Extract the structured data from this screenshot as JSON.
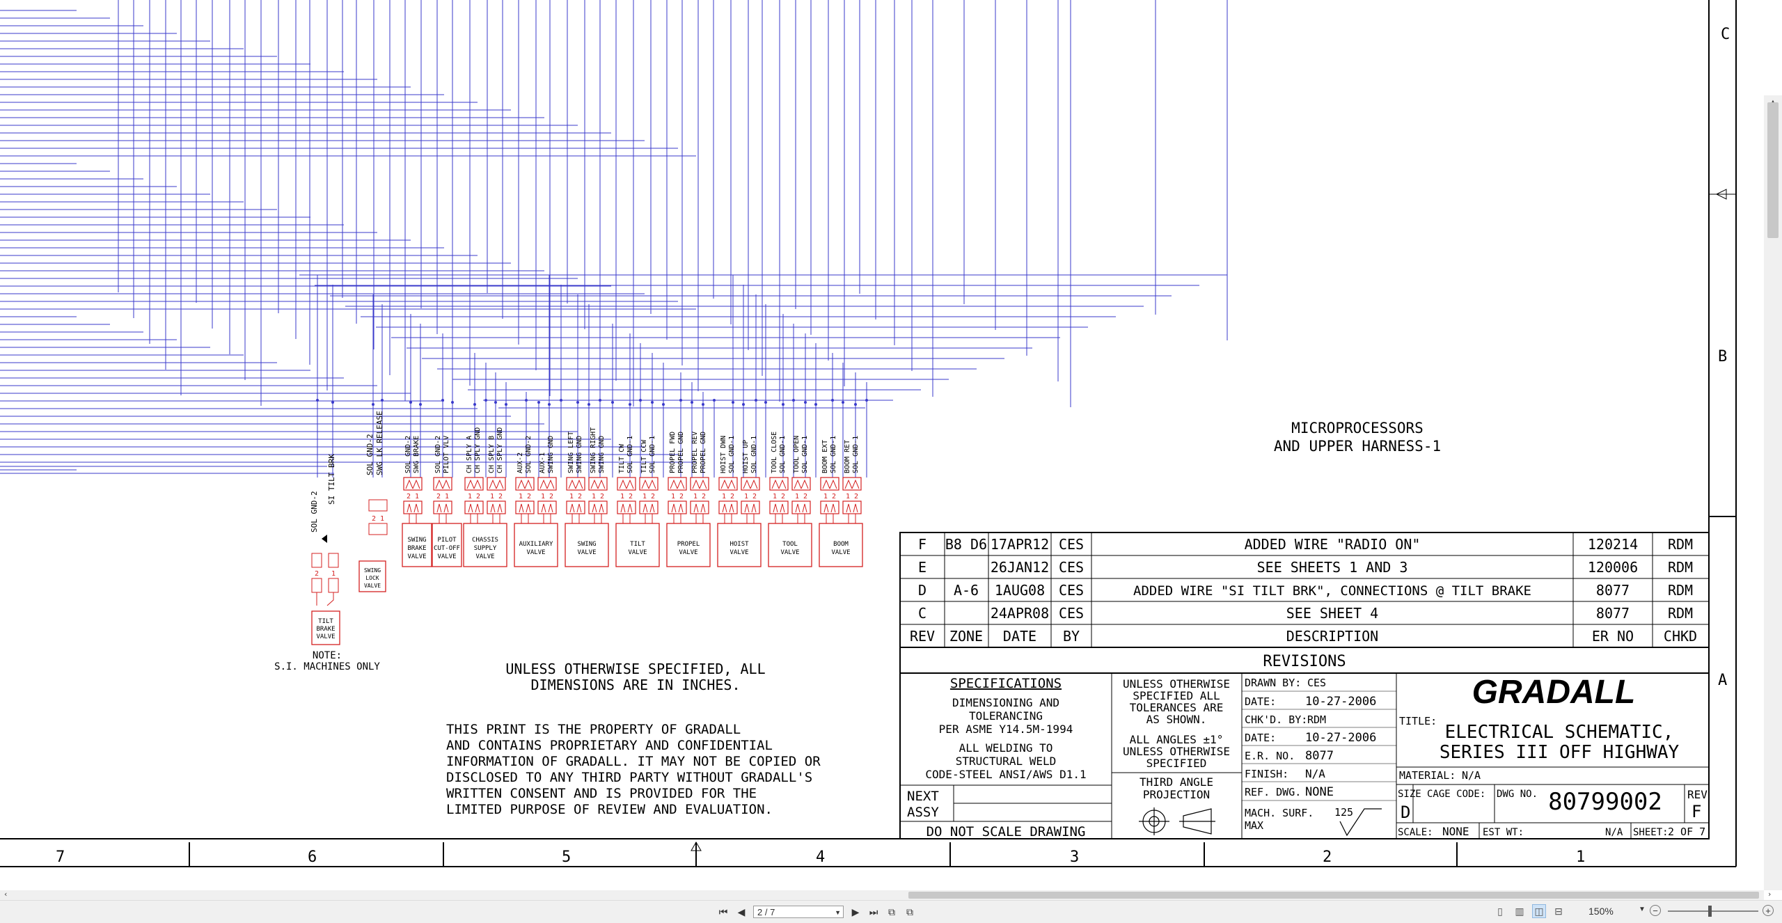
{
  "drawing": {
    "row_letters": [
      "C",
      "B",
      "A"
    ],
    "column_numbers": [
      "7",
      "6",
      "5",
      "4",
      "3",
      "2",
      "1"
    ],
    "microprocessor_title": [
      "MICROPROCESSORS",
      "AND UPPER HARNESS-1"
    ],
    "tilt_wire_labels": [
      "SOL GND-2",
      "SI TILT BRK"
    ],
    "swing_lock_wire_labels": [
      "SOL GND-2",
      "SWG LK RELEASE"
    ],
    "connector_wire_labels": [
      [
        "SOL GND-2",
        "SWG BRAKE"
      ],
      [
        "SOL GND-2",
        "PILOT VLV"
      ],
      [
        "CH SPLY A",
        "CH SPLY GND"
      ],
      [
        "CH SPLY B",
        "CH SPLY GND"
      ],
      [
        "AUX-2",
        "SOL GND-2"
      ],
      [
        "AUX-1",
        "SWING GND"
      ],
      [
        "SWING LEFT",
        "SWING GND"
      ],
      [
        "SWING RIGHT",
        "SWING GND"
      ],
      [
        "TILT CW",
        "SOL GND-1"
      ],
      [
        "TILT CCW",
        "SOL GND-1"
      ],
      [
        "PROPEL FWD",
        "PROPEL GND"
      ],
      [
        "PROPEL REV",
        "PROPEL GND"
      ],
      [
        "HOIST DWN",
        "SOL GND-1"
      ],
      [
        "HOIST UP",
        "SOL GND-1"
      ],
      [
        "TOOL CLOSE",
        "SOL GND-1"
      ],
      [
        "TOOL OPEN",
        "SOL GND-1"
      ],
      [
        "BOOM EXT",
        "SOL GND-1"
      ],
      [
        "BOOM RET",
        "SOL GND-1"
      ]
    ],
    "valves": [
      {
        "lines": [
          "TILT",
          "BRAKE",
          "VALVE"
        ]
      },
      {
        "lines": [
          "SWING",
          "LOCK",
          "VALVE"
        ]
      },
      {
        "lines": [
          "SWING",
          "BRAKE",
          "VALVE"
        ]
      },
      {
        "lines": [
          "PILOT",
          "CUT-OFF",
          "VALVE"
        ]
      },
      {
        "lines": [
          "CHASSIS",
          "SUPPLY",
          "VALVE"
        ]
      },
      {
        "lines": [
          "AUXILIARY",
          "VALVE"
        ]
      },
      {
        "lines": [
          "SWING",
          "VALVE"
        ]
      },
      {
        "lines": [
          "TILT",
          "VALVE"
        ]
      },
      {
        "lines": [
          "PROPEL",
          "VALVE"
        ]
      },
      {
        "lines": [
          "HOIST",
          "VALVE"
        ]
      },
      {
        "lines": [
          "TOOL",
          "VALVE"
        ]
      },
      {
        "lines": [
          "BOOM",
          "VALVE"
        ]
      }
    ],
    "pin_labels_21": [
      "2 1",
      "2 1"
    ],
    "pin_labels_12": [
      "1 2"
    ],
    "note": [
      "NOTE:",
      "S.I. MACHINES ONLY"
    ],
    "dimensions_note": [
      "UNLESS OTHERWISE SPECIFIED, ALL",
      "DIMENSIONS ARE IN INCHES."
    ],
    "property_notice": [
      "THIS PRINT IS THE PROPERTY OF GRADALL",
      "AND CONTAINS PROPRIETARY AND CONFIDENTIAL",
      "INFORMATION OF GRADALL. IT MAY NOT BE COPIED OR",
      "DISCLOSED TO ANY THIRD PARTY WITHOUT GRADALL'S",
      "WRITTEN CONSENT AND IS PROVIDED FOR THE",
      "LIMITED PURPOSE OF REVIEW AND EVALUATION."
    ]
  },
  "revisions": {
    "rows": [
      {
        "rev": "F",
        "zone": "B8 D6",
        "date": "17APR12",
        "by": "CES",
        "description": "ADDED WIRE \"RADIO ON\"",
        "er_no": "120214",
        "chkd": "RDM"
      },
      {
        "rev": "E",
        "zone": "",
        "date": "26JAN12",
        "by": "CES",
        "description": "SEE SHEETS 1 AND 3",
        "er_no": "120006",
        "chkd": "RDM"
      },
      {
        "rev": "D",
        "zone": "A-6",
        "date": "1AUG08",
        "by": "CES",
        "description": "ADDED WIRE \"SI TILT BRK\", CONNECTIONS @ TILT BRAKE",
        "er_no": "8077",
        "chkd": "RDM"
      },
      {
        "rev": "C",
        "zone": "",
        "date": "24APR08",
        "by": "CES",
        "description": "SEE SHEET 4",
        "er_no": "8077",
        "chkd": "RDM"
      }
    ],
    "headers": {
      "rev": "REV",
      "zone": "ZONE",
      "date": "DATE",
      "by": "BY",
      "description": "DESCRIPTION",
      "er_no": "ER NO",
      "chkd": "CHKD"
    },
    "title": "REVISIONS"
  },
  "title_block": {
    "specifications_title": "SPECIFICATIONS",
    "spec_lines": [
      "DIMENSIONING AND",
      "TOLERANCING",
      "PER ASME Y14.5M-1994",
      "ALL WELDING TO",
      "STRUCTURAL WELD",
      "CODE-STEEL ANSI/AWS D1.1"
    ],
    "next_assy": [
      "NEXT",
      "ASSY"
    ],
    "do_not_scale": "DO NOT SCALE DRAWING",
    "tolerance_lines": [
      "UNLESS OTHERWISE",
      "SPECIFIED ALL",
      "TOLERANCES ARE",
      "AS SHOWN.",
      "ALL ANGLES ±1°",
      "UNLESS OTHERWISE",
      "SPECIFIED"
    ],
    "projection": [
      "THIRD ANGLE",
      "PROJECTION"
    ],
    "drawn_by_label": "DRAWN BY:",
    "drawn_by": "CES",
    "date1_label": "DATE:",
    "date1": "10-27-2006",
    "chkd_by_label": "CHK'D. BY:",
    "chkd_by": "RDM",
    "date2_label": "DATE:",
    "date2": "10-27-2006",
    "er_no_label": "E.R. NO.",
    "er_no": "8077",
    "finish_label": "FINISH:",
    "finish": "N/A",
    "ref_dwg_label": "REF. DWG.",
    "ref_dwg": "NONE",
    "mach_surf": [
      "MACH. SURF.",
      "MAX"
    ],
    "mach_value": "125",
    "company": "GRADALL",
    "title_label": "TITLE:",
    "title_lines": [
      "ELECTRICAL SCHEMATIC,",
      "SERIES III OFF HIGHWAY"
    ],
    "material_label": "MATERIAL:",
    "material": "N/A",
    "size_label": "SIZE",
    "size": "D",
    "cage_label": "CAGE CODE:",
    "dwg_no_label": "DWG NO.",
    "dwg_no": "80799002",
    "rev_label": "REV",
    "rev": "F",
    "scale_label": "SCALE:",
    "scale": "NONE",
    "est_wt_label": "EST WT:",
    "est_wt": "N/A",
    "sheet_label": "SHEET:",
    "sheet": "2 OF 7"
  },
  "viewer": {
    "page_value": "2 / 7",
    "zoom": "150%",
    "nav_icons": [
      "first-page",
      "previous-page",
      "next-page",
      "last-page"
    ],
    "colors": {
      "wire": "#3a3acb",
      "component": "#d42020",
      "ink": "#000000",
      "chrome": "#f0f0f0"
    }
  }
}
